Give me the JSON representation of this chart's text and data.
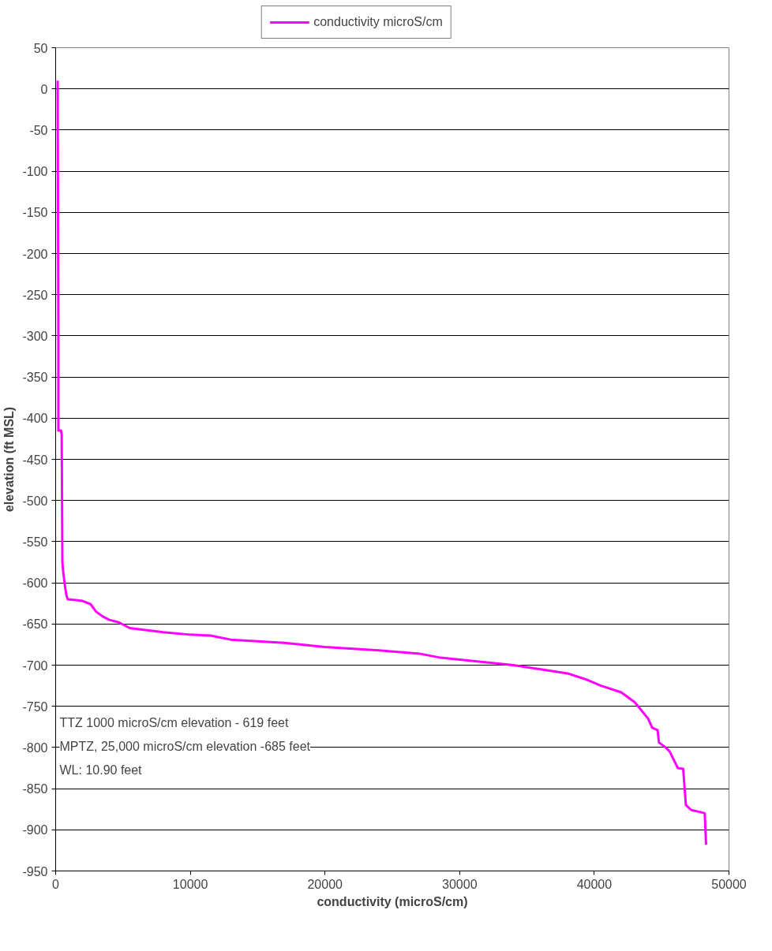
{
  "chart_data": {
    "type": "line",
    "xlabel": "conductivity (microS/cm)",
    "ylabel": "elevation (ft MSL)",
    "xlim": [
      0,
      50000
    ],
    "xticks": [
      0,
      10000,
      20000,
      30000,
      40000,
      50000
    ],
    "ylim": [
      -950,
      50
    ],
    "yticks": [
      50,
      0,
      -50,
      -100,
      -150,
      -200,
      -250,
      -300,
      -350,
      -400,
      -450,
      -500,
      -550,
      -600,
      -650,
      -700,
      -750,
      -800,
      -850,
      -900,
      -950
    ],
    "grid": "y",
    "legend": "top",
    "marker": "none",
    "line_style": "solid",
    "annotations": [
      "TTZ 1000 microS/cm elevation - 619 feet",
      "MPTZ, 25,000 microS/cm elevation -685 feet",
      "WL:  10.90 feet"
    ],
    "series": [
      {
        "name": "conductivity microS/cm",
        "color": "#ff00ff",
        "x": [
          150,
          200,
          200,
          400,
          450,
          500,
          550,
          700,
          800,
          900,
          1500,
          2000,
          2600,
          3000,
          3500,
          4000,
          4700,
          5500,
          8000,
          10000,
          11500,
          13000,
          17000,
          20000,
          24000,
          27000,
          28600,
          31000,
          34000,
          36000,
          38000,
          39500,
          40500,
          42000,
          43000,
          44000,
          44300,
          44700,
          44800,
          45300,
          45600,
          46200,
          46600,
          46800,
          47200,
          48000,
          48200,
          48300
        ],
        "values": [
          10,
          -300,
          -415,
          -415,
          -420,
          -575,
          -585,
          -605,
          -615,
          -620,
          -621,
          -622,
          -626,
          -635,
          -641,
          -645,
          -648,
          -655,
          -660,
          -663,
          -664,
          -669,
          -673,
          -678,
          -682,
          -686,
          -691,
          -695,
          -700,
          -705,
          -710,
          -718,
          -725,
          -733,
          -745,
          -765,
          -776,
          -779,
          -794,
          -800,
          -805,
          -825,
          -826,
          -870,
          -876,
          -879,
          -880,
          -918
        ]
      }
    ]
  }
}
